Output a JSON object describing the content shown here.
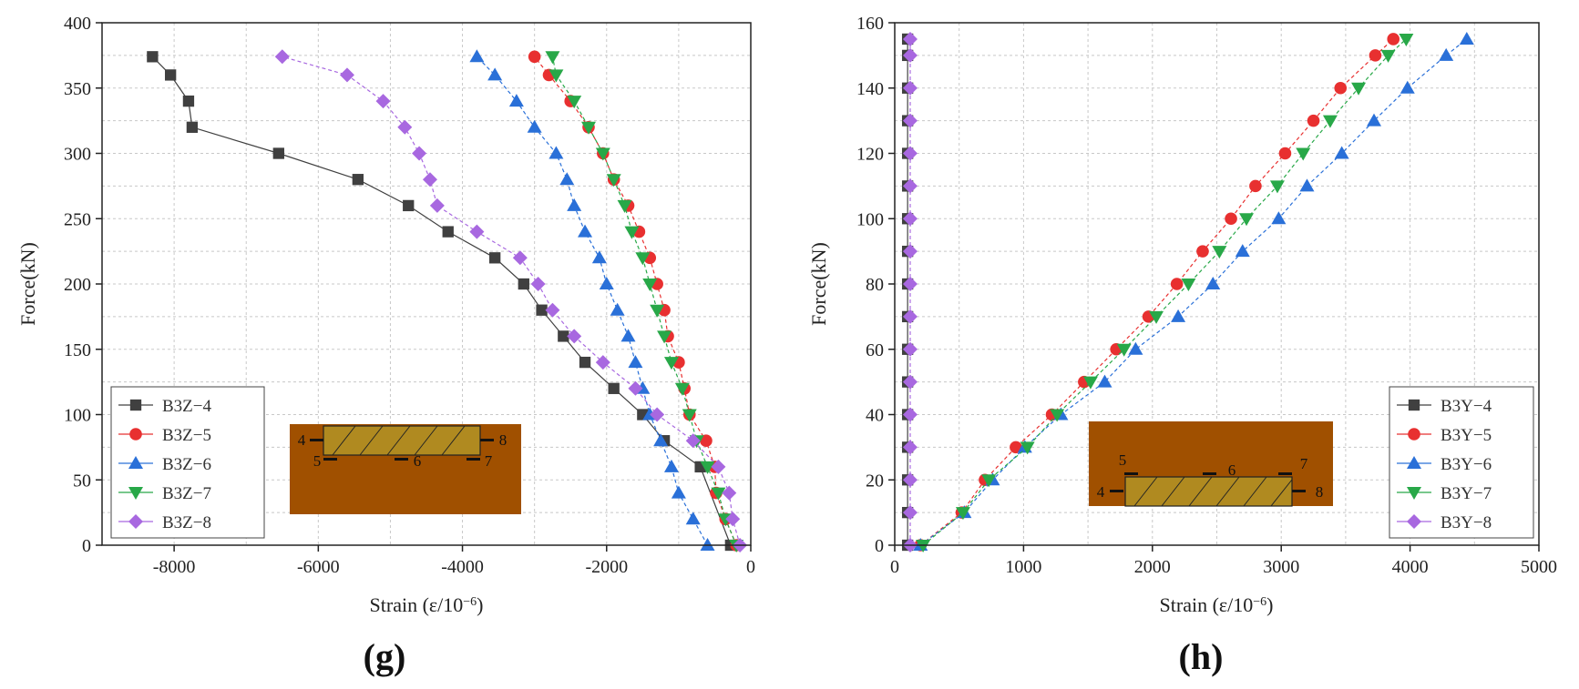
{
  "chart_data": [
    {
      "type": "line",
      "panel_label": "(g)",
      "xlabel": "Strain (ε/10",
      "xlabel_sup": "−6",
      "xlabel_close": ")",
      "ylabel": "Force(kN)",
      "xlim": [
        -9000,
        0
      ],
      "ylim": [
        0,
        400
      ],
      "xticks": [
        -8000,
        -6000,
        -4000,
        -2000,
        0
      ],
      "xtick_labels": [
        "-8000",
        "-6000",
        "-4000",
        "-2000",
        "0"
      ],
      "yticks": [
        0,
        50,
        100,
        150,
        200,
        250,
        300,
        350,
        400
      ],
      "ytick_labels": [
        "0",
        "50",
        "100",
        "150",
        "200",
        "250",
        "300",
        "350",
        "400"
      ],
      "grid": true,
      "legend_position": "bottom-left",
      "series": [
        {
          "name": "B3Z−4",
          "color": "#404040",
          "marker": "square",
          "points": [
            [
              -280,
              0
            ],
            [
              -700,
              60
            ],
            [
              -1200,
              80
            ],
            [
              -1500,
              100
            ],
            [
              -1900,
              120
            ],
            [
              -2300,
              140
            ],
            [
              -2600,
              160
            ],
            [
              -2900,
              180
            ],
            [
              -3150,
              200
            ],
            [
              -3550,
              220
            ],
            [
              -4200,
              240
            ],
            [
              -4750,
              260
            ],
            [
              -5450,
              280
            ],
            [
              -6550,
              300
            ],
            [
              -7750,
              320
            ],
            [
              -7800,
              340
            ],
            [
              -8050,
              360
            ],
            [
              -8300,
              374
            ]
          ]
        },
        {
          "name": "B3Z−5",
          "color": "#e83030",
          "marker": "circle",
          "points": [
            [
              -200,
              0
            ],
            [
              -350,
              20
            ],
            [
              -480,
              40
            ],
            [
              -500,
              60
            ],
            [
              -620,
              80
            ],
            [
              -850,
              100
            ],
            [
              -920,
              120
            ],
            [
              -1000,
              140
            ],
            [
              -1150,
              160
            ],
            [
              -1200,
              180
            ],
            [
              -1300,
              200
            ],
            [
              -1400,
              220
            ],
            [
              -1550,
              240
            ],
            [
              -1700,
              260
            ],
            [
              -1900,
              280
            ],
            [
              -2050,
              300
            ],
            [
              -2250,
              320
            ],
            [
              -2500,
              340
            ],
            [
              -2800,
              360
            ],
            [
              -3000,
              374
            ]
          ]
        },
        {
          "name": "B3Z−6",
          "color": "#2a70d8",
          "marker": "triangle-up",
          "points": [
            [
              -600,
              0
            ],
            [
              -800,
              20
            ],
            [
              -1000,
              40
            ],
            [
              -1100,
              60
            ],
            [
              -1250,
              80
            ],
            [
              -1400,
              100
            ],
            [
              -1500,
              120
            ],
            [
              -1600,
              140
            ],
            [
              -1700,
              160
            ],
            [
              -1850,
              180
            ],
            [
              -2000,
              200
            ],
            [
              -2100,
              220
            ],
            [
              -2300,
              240
            ],
            [
              -2450,
              260
            ],
            [
              -2550,
              280
            ],
            [
              -2700,
              300
            ],
            [
              -3000,
              320
            ],
            [
              -3250,
              340
            ],
            [
              -3550,
              360
            ],
            [
              -3800,
              374
            ]
          ]
        },
        {
          "name": "B3Z−7",
          "color": "#28a848",
          "marker": "triangle-down",
          "points": [
            [
              -200,
              0
            ],
            [
              -350,
              20
            ],
            [
              -450,
              40
            ],
            [
              -600,
              60
            ],
            [
              -750,
              80
            ],
            [
              -850,
              100
            ],
            [
              -950,
              120
            ],
            [
              -1100,
              140
            ],
            [
              -1200,
              160
            ],
            [
              -1300,
              180
            ],
            [
              -1400,
              200
            ],
            [
              -1500,
              220
            ],
            [
              -1650,
              240
            ],
            [
              -1750,
              260
            ],
            [
              -1900,
              280
            ],
            [
              -2050,
              300
            ],
            [
              -2250,
              320
            ],
            [
              -2450,
              340
            ],
            [
              -2700,
              360
            ],
            [
              -2750,
              374
            ]
          ]
        },
        {
          "name": "B3Z−8",
          "color": "#a868e0",
          "marker": "diamond",
          "points": [
            [
              -150,
              0
            ],
            [
              -250,
              20
            ],
            [
              -300,
              40
            ],
            [
              -450,
              60
            ],
            [
              -800,
              80
            ],
            [
              -1300,
              100
            ],
            [
              -1600,
              120
            ],
            [
              -2050,
              140
            ],
            [
              -2450,
              160
            ],
            [
              -2750,
              180
            ],
            [
              -2950,
              200
            ],
            [
              -3200,
              220
            ],
            [
              -3800,
              240
            ],
            [
              -4350,
              260
            ],
            [
              -4450,
              280
            ],
            [
              -4600,
              300
            ],
            [
              -4800,
              320
            ],
            [
              -5100,
              340
            ],
            [
              -5600,
              360
            ],
            [
              -6500,
              374
            ]
          ]
        }
      ],
      "inset_labels": [
        "4",
        "5",
        "6",
        "7",
        "8"
      ]
    },
    {
      "type": "line",
      "panel_label": "(h)",
      "xlabel": "Strain (ε/10",
      "xlabel_sup": "−6",
      "xlabel_close": ")",
      "ylabel": "Force(kN)",
      "xlim": [
        0,
        5000
      ],
      "ylim": [
        0,
        160
      ],
      "xticks": [
        0,
        1000,
        2000,
        3000,
        4000,
        5000
      ],
      "xtick_labels": [
        "0",
        "1000",
        "2000",
        "3000",
        "4000",
        "5000"
      ],
      "yticks": [
        0,
        20,
        40,
        60,
        80,
        100,
        120,
        140,
        160
      ],
      "ytick_labels": [
        "0",
        "20",
        "40",
        "60",
        "80",
        "100",
        "120",
        "140",
        "160"
      ],
      "grid": true,
      "legend_position": "bottom-right",
      "series": [
        {
          "name": "B3Y−4",
          "color": "#404040",
          "marker": "square",
          "points": [
            [
              100,
              0
            ],
            [
              100,
              10
            ],
            [
              100,
              20
            ],
            [
              100,
              30
            ],
            [
              100,
              40
            ],
            [
              100,
              50
            ],
            [
              100,
              60
            ],
            [
              100,
              70
            ],
            [
              100,
              80
            ],
            [
              100,
              90
            ],
            [
              100,
              100
            ],
            [
              100,
              110
            ],
            [
              100,
              120
            ],
            [
              100,
              130
            ],
            [
              100,
              140
            ],
            [
              100,
              150
            ],
            [
              100,
              155
            ]
          ]
        },
        {
          "name": "B3Y−5",
          "color": "#e83030",
          "marker": "circle",
          "points": [
            [
              200,
              0
            ],
            [
              520,
              10
            ],
            [
              700,
              20
            ],
            [
              940,
              30
            ],
            [
              1220,
              40
            ],
            [
              1470,
              50
            ],
            [
              1720,
              60
            ],
            [
              1970,
              70
            ],
            [
              2190,
              80
            ],
            [
              2390,
              90
            ],
            [
              2610,
              100
            ],
            [
              2800,
              110
            ],
            [
              3030,
              120
            ],
            [
              3250,
              130
            ],
            [
              3460,
              140
            ],
            [
              3730,
              150
            ],
            [
              3870,
              155
            ]
          ]
        },
        {
          "name": "B3Y−6",
          "color": "#2a70d8",
          "marker": "triangle-up",
          "points": [
            [
              200,
              0
            ],
            [
              540,
              10
            ],
            [
              760,
              20
            ],
            [
              1010,
              30
            ],
            [
              1290,
              40
            ],
            [
              1630,
              50
            ],
            [
              1870,
              60
            ],
            [
              2200,
              70
            ],
            [
              2470,
              80
            ],
            [
              2700,
              90
            ],
            [
              2980,
              100
            ],
            [
              3200,
              110
            ],
            [
              3470,
              120
            ],
            [
              3720,
              130
            ],
            [
              3980,
              140
            ],
            [
              4280,
              150
            ],
            [
              4440,
              155
            ]
          ]
        },
        {
          "name": "B3Y−7",
          "color": "#28a848",
          "marker": "triangle-down",
          "points": [
            [
              220,
              0
            ],
            [
              530,
              10
            ],
            [
              730,
              20
            ],
            [
              1030,
              30
            ],
            [
              1260,
              40
            ],
            [
              1520,
              50
            ],
            [
              1780,
              60
            ],
            [
              2030,
              70
            ],
            [
              2280,
              80
            ],
            [
              2520,
              90
            ],
            [
              2730,
              100
            ],
            [
              2970,
              110
            ],
            [
              3170,
              120
            ],
            [
              3380,
              130
            ],
            [
              3600,
              140
            ],
            [
              3830,
              150
            ],
            [
              3970,
              155
            ]
          ]
        },
        {
          "name": "B3Y−8",
          "color": "#a868e0",
          "marker": "diamond",
          "points": [
            [
              120,
              0
            ],
            [
              120,
              10
            ],
            [
              120,
              20
            ],
            [
              120,
              30
            ],
            [
              120,
              40
            ],
            [
              120,
              50
            ],
            [
              120,
              60
            ],
            [
              120,
              70
            ],
            [
              120,
              80
            ],
            [
              120,
              90
            ],
            [
              120,
              100
            ],
            [
              120,
              110
            ],
            [
              120,
              120
            ],
            [
              120,
              130
            ],
            [
              120,
              140
            ],
            [
              120,
              150
            ],
            [
              120,
              155
            ]
          ]
        }
      ],
      "inset_labels": [
        "4",
        "5",
        "6",
        "7",
        "8"
      ]
    }
  ]
}
